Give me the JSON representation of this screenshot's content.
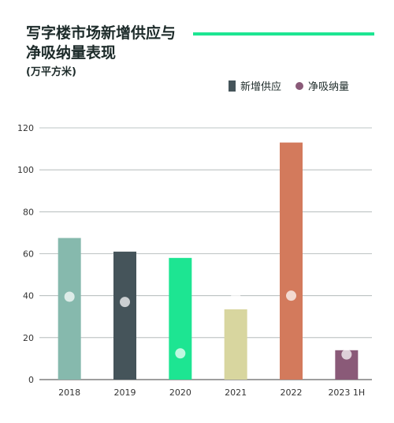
{
  "title_line1": "写字楼市场新增供应与",
  "title_line2": "净吸纳量表现",
  "unit": "(万平方米)",
  "colors": {
    "accent_line": "#1de592",
    "absorption_dot": "#8a5a78",
    "bars": [
      "#86b9ad",
      "#45545a",
      "#1de592",
      "#d8d69f",
      "#d37a5c",
      "#8a5a78"
    ]
  },
  "chart_data": {
    "type": "bar",
    "categories": [
      "2018",
      "2019",
      "2020",
      "2021",
      "2022",
      "2023 1H"
    ],
    "series": [
      {
        "name": "新增供应",
        "type": "bar",
        "values": [
          67.5,
          61,
          58,
          33.5,
          113,
          14
        ]
      },
      {
        "name": "净吸纳量",
        "type": "scatter",
        "values": [
          39.5,
          37,
          12.5,
          39,
          40,
          12
        ]
      }
    ],
    "ylim": [
      0,
      120
    ],
    "yticks": [
      0,
      20,
      40,
      60,
      80,
      100,
      120
    ],
    "grid": true,
    "legend_position": "top-right"
  }
}
